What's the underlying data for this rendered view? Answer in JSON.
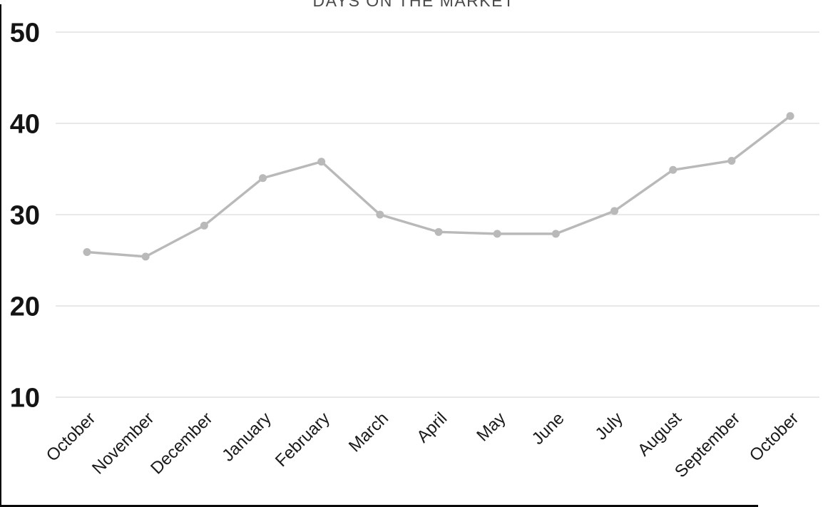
{
  "title": "DAYS ON THE MARKET",
  "chart_data": {
    "type": "line",
    "title": "DAYS ON THE MARKET",
    "categories": [
      "October",
      "November",
      "December",
      "January",
      "February",
      "March",
      "April",
      "May",
      "June",
      "July",
      "August",
      "September",
      "October"
    ],
    "series": [
      {
        "name": "Days on the market",
        "values": [
          25.9,
          25.4,
          28.8,
          34.0,
          35.8,
          30.0,
          28.1,
          27.9,
          27.9,
          30.4,
          34.9,
          35.9,
          40.8
        ]
      }
    ],
    "xlabel": "",
    "ylabel": "",
    "ylim": [
      10,
      50
    ],
    "yticks": [
      50,
      40,
      30,
      20,
      10
    ],
    "grid": true,
    "legend_position": "none",
    "colors": {
      "line": "#b9b9b9",
      "marker": "#b9b9b9",
      "gridline": "#e2e2e2",
      "y_tick_label": "#141414",
      "x_tick_label": "#1a1a1a",
      "title": "#4a4a4a",
      "frame": "#0a0a0a",
      "background": "#ffffff"
    }
  }
}
